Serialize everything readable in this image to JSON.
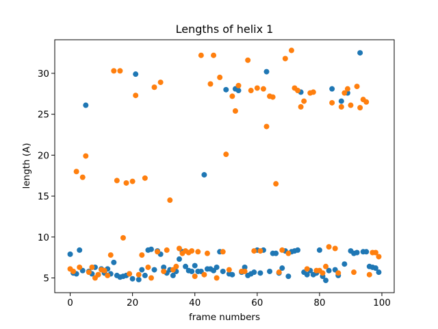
{
  "chart_data": {
    "type": "scatter",
    "title": "Lengths of helix 1",
    "xlabel": "frame numbers",
    "ylabel": "length (A)",
    "x": [
      0,
      1,
      2,
      3,
      4,
      5,
      6,
      7,
      8,
      9,
      10,
      11,
      12,
      13,
      14,
      15,
      16,
      17,
      18,
      19,
      20,
      21,
      22,
      23,
      24,
      25,
      26,
      27,
      28,
      29,
      30,
      31,
      32,
      33,
      34,
      35,
      36,
      37,
      38,
      39,
      40,
      41,
      42,
      43,
      44,
      45,
      46,
      47,
      48,
      49,
      50,
      51,
      52,
      53,
      54,
      55,
      56,
      57,
      58,
      59,
      60,
      61,
      62,
      63,
      64,
      65,
      66,
      67,
      68,
      69,
      70,
      71,
      72,
      73,
      74,
      75,
      76,
      77,
      78,
      79,
      80,
      81,
      82,
      83,
      84,
      85,
      86,
      87,
      88,
      89,
      90,
      91,
      92,
      93,
      94,
      95,
      96,
      97,
      98,
      99
    ],
    "series": [
      {
        "color": "#1f77b4",
        "values": [
          7.9,
          5.6,
          5.5,
          8.4,
          5.9,
          26.1,
          5.8,
          5.5,
          6.3,
          5.4,
          6.1,
          5.6,
          6.1,
          5.5,
          6.9,
          5.3,
          5.1,
          5.2,
          5.3,
          5.5,
          4.9,
          29.9,
          4.8,
          6.0,
          5.3,
          8.4,
          8.5,
          6.0,
          8.3,
          7.9,
          6.3,
          5.6,
          6.0,
          5.3,
          5.8,
          7.3,
          8.2,
          6.4,
          5.9,
          5.8,
          6.5,
          5.8,
          5.8,
          17.6,
          6.1,
          6.1,
          5.9,
          6.3,
          8.2,
          5.8,
          28.0,
          5.5,
          5.4,
          28.1,
          27.9,
          5.7,
          6.3,
          5.3,
          5.5,
          5.7,
          8.4,
          5.6,
          8.4,
          30.2,
          5.8,
          8.0,
          8.0,
          5.6,
          6.2,
          8.3,
          5.2,
          8.2,
          8.3,
          8.4,
          27.7,
          5.7,
          5.4,
          5.9,
          5.4,
          5.6,
          8.4,
          5.2,
          4.7,
          5.9,
          28.1,
          6.0,
          5.3,
          26.6,
          6.7,
          27.6,
          8.3,
          8.0,
          8.1,
          32.5,
          8.2,
          8.2,
          6.4,
          6.3,
          6.2,
          5.7
        ]
      },
      {
        "color": "#ff7f0e",
        "values": [
          6.1,
          5.8,
          18.0,
          6.3,
          17.3,
          19.9,
          5.7,
          6.3,
          5.0,
          5.4,
          6.0,
          5.9,
          5.3,
          7.8,
          30.3,
          16.9,
          30.3,
          9.9,
          16.6,
          5.5,
          16.8,
          27.3,
          5.4,
          7.8,
          17.2,
          6.3,
          5.0,
          28.3,
          8.2,
          28.9,
          5.8,
          8.4,
          14.5,
          6.0,
          6.4,
          8.6,
          8.0,
          8.3,
          8.1,
          8.3,
          5.2,
          8.2,
          32.2,
          5.4,
          8.0,
          28.7,
          32.2,
          5.0,
          29.5,
          8.2,
          20.1,
          6.0,
          27.2,
          25.4,
          28.5,
          5.8,
          5.8,
          31.6,
          27.9,
          8.3,
          28.2,
          8.3,
          28.1,
          23.5,
          27.2,
          27.1,
          16.5,
          5.7,
          8.4,
          31.8,
          8.0,
          32.8,
          28.2,
          27.9,
          25.9,
          26.6,
          6.1,
          27.6,
          27.7,
          5.9,
          5.9,
          5.6,
          6.4,
          8.8,
          26.4,
          8.6,
          5.6,
          25.9,
          27.6,
          28.1,
          26.1,
          5.7,
          28.4,
          25.8,
          26.8,
          26.5,
          5.4,
          8.1,
          8.1,
          7.6
        ]
      }
    ],
    "xlim": [
      -4.95,
      103.95
    ],
    "ylim": [
      3.2,
      34.1
    ],
    "xticks": [
      0,
      20,
      40,
      60,
      80,
      100
    ],
    "yticks": [
      5,
      10,
      15,
      20,
      25,
      30
    ]
  }
}
